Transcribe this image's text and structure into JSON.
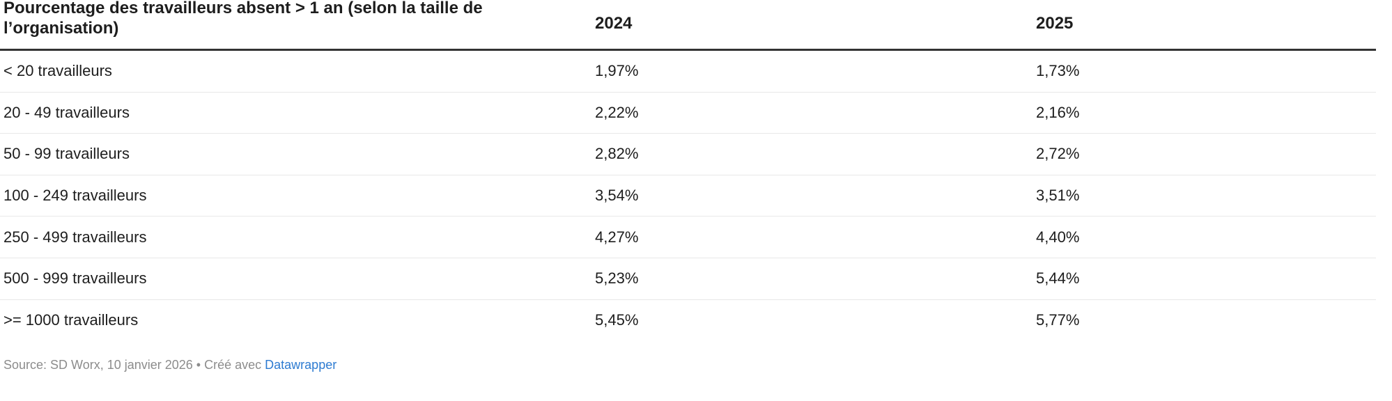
{
  "accent_colors": {
    "text": "#1d1d1d",
    "header_rule": "#333333",
    "row_divider": "#e8e8e8",
    "footer_gray": "#8c8c8c",
    "link_blue": "#2d7bd1"
  },
  "table": {
    "title": "Pourcentage des travailleurs absent > 1 an (selon la taille de l’organisation)",
    "title_line1": "Pourcentage des travailleurs absent > 1 an (selon la taille de",
    "title_line2": "l’organisation)",
    "columns": [
      "2024",
      "2025"
    ],
    "rows": [
      {
        "label": "< 20 travailleurs",
        "y2024": "1,97%",
        "y2025": "1,73%"
      },
      {
        "label": "20 - 49 travailleurs",
        "y2024": "2,22%",
        "y2025": "2,16%"
      },
      {
        "label": "50 - 99 travailleurs",
        "y2024": "2,82%",
        "y2025": "2,72%"
      },
      {
        "label": "100 - 249 travailleurs",
        "y2024": "3,54%",
        "y2025": "3,51%"
      },
      {
        "label": "250 - 499 travailleurs",
        "y2024": "4,27%",
        "y2025": "4,40%"
      },
      {
        "label": "500 - 999 travailleurs",
        "y2024": "5,23%",
        "y2025": "5,44%"
      },
      {
        "label": ">= 1000 travailleurs",
        "y2024": "5,45%",
        "y2025": "5,77%"
      }
    ]
  },
  "footer": {
    "source_prefix": "Source: SD Worx, 10 janvier 2026 • Créé avec ",
    "link_label": "Datawrapper"
  },
  "chart_data": {
    "type": "table",
    "title": "Pourcentage des travailleurs absent > 1 an (selon la taille de l’organisation)",
    "categories": [
      "< 20 travailleurs",
      "20 - 49 travailleurs",
      "50 - 99 travailleurs",
      "100 - 249 travailleurs",
      "250 - 499 travailleurs",
      "500 - 999 travailleurs",
      ">= 1000 travailleurs"
    ],
    "series": [
      {
        "name": "2024",
        "values": [
          1.97,
          2.22,
          2.82,
          3.54,
          4.27,
          5.23,
          5.45
        ]
      },
      {
        "name": "2025",
        "values": [
          1.73,
          2.16,
          2.72,
          3.51,
          4.4,
          5.44,
          5.77
        ]
      }
    ],
    "value_unit": "%",
    "value_format": "comma-decimal percent",
    "source": "Source: SD Worx, 10 janvier 2026",
    "attribution": "Créé avec Datawrapper"
  }
}
